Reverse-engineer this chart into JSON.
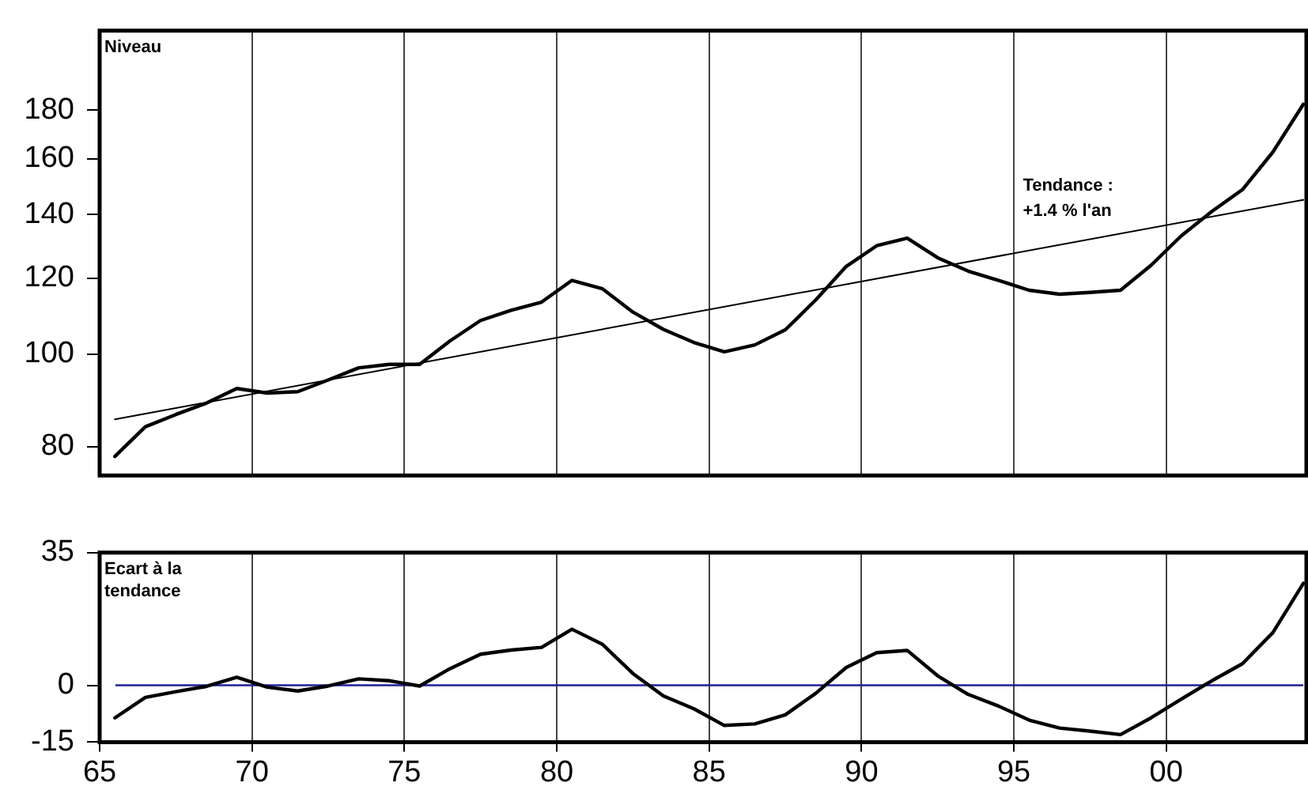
{
  "chart_data": [
    {
      "type": "line",
      "ylabel": "Niveau",
      "log": true,
      "grid": "x",
      "legend": false,
      "tick_labels": "y",
      "marker": "none",
      "x": [
        1965.5,
        1966.5,
        1967.5,
        1968.5,
        1969.5,
        1970.5,
        1971.5,
        1972.5,
        1973.5,
        1974.5,
        1975.5,
        1976.5,
        1977.5,
        1978.5,
        1979.5,
        1980.5,
        1981.5,
        1982.5,
        1983.5,
        1984.5,
        1985.5,
        1986.5,
        1987.5,
        1988.5,
        1989.5,
        1990.5,
        1991.5,
        1992.5,
        1993.5,
        1994.5,
        1995.5,
        1996.5,
        1997.5,
        1998.5,
        1999.5,
        2000.5,
        2001.5,
        2002.5,
        2003.5,
        2004.5
      ],
      "series": [
        {
          "color": "#000000",
          "values": [
            78.1,
            83.9,
            86.4,
            88.8,
            92.0,
            91.0,
            91.3,
            93.9,
            96.7,
            97.5,
            97.5,
            103.2,
            108.4,
            111.1,
            113.3,
            119.4,
            117.0,
            110.6,
            106.1,
            102.8,
            100.5,
            102.2,
            106.0,
            113.9,
            123.5,
            129.8,
            132.2,
            126.1,
            122.1,
            119.4,
            116.6,
            115.5,
            116.0,
            116.6,
            123.8,
            133.0,
            141.0,
            148.6,
            162.7,
            182.6
          ]
        },
        {
          "type": "line",
          "color": "#000000",
          "x": [
            1965.5,
            2004.5
          ],
          "values": [
            85.4,
            145.0
          ]
        }
      ],
      "annotations": [
        "Tendance :\n+1.4 % l'an"
      ],
      "xlim": [
        1965,
        2004.6
      ],
      "xticks": [
        {
          "value": 1965,
          "label": null
        },
        {
          "value": 1970,
          "label": null
        },
        {
          "value": 1975,
          "label": null
        },
        {
          "value": 1980,
          "label": null
        },
        {
          "value": 1985,
          "label": null
        },
        {
          "value": 1990,
          "label": null
        },
        {
          "value": 1995,
          "label": null
        },
        {
          "value": 2000,
          "label": null
        }
      ],
      "ylim": [
        74.6,
        218
      ],
      "yticks": [
        80,
        100,
        120,
        140,
        160,
        180
      ]
    },
    {
      "type": "line",
      "ylabel": "Ecart à la tendance",
      "grid": "x",
      "legend": false,
      "marker": "none",
      "x": [
        1965.5,
        1966.5,
        1967.5,
        1968.5,
        1969.5,
        1970.5,
        1971.5,
        1972.5,
        1973.5,
        1974.5,
        1975.5,
        1976.5,
        1977.5,
        1978.5,
        1979.5,
        1980.5,
        1981.5,
        1982.5,
        1983.5,
        1984.5,
        1985.5,
        1986.5,
        1987.5,
        1988.5,
        1989.5,
        1990.5,
        1991.5,
        1992.5,
        1993.5,
        1994.5,
        1995.5,
        1996.5,
        1997.5,
        1998.5,
        1999.5,
        2000.5,
        2001.5,
        2002.5,
        2003.5,
        2004.5
      ],
      "series": [
        {
          "color": "#000000",
          "values": [
            -8.6,
            -3.2,
            -1.7,
            -0.3,
            2.1,
            -0.5,
            -1.5,
            -0.2,
            1.7,
            1.2,
            -0.2,
            4.4,
            8.2,
            9.3,
            10.0,
            14.8,
            10.8,
            3.1,
            -2.8,
            -6.2,
            -10.6,
            -10.2,
            -7.8,
            -2.1,
            4.7,
            8.6,
            9.2,
            2.5,
            -2.4,
            -5.5,
            -9.2,
            -11.3,
            -12.1,
            -13.0,
            -8.6,
            -3.6,
            1.2,
            5.7,
            13.9,
            26.9
          ]
        }
      ],
      "ref_lines": [
        {
          "axis": "y",
          "value": 0,
          "color": "#1f1f9a"
        }
      ],
      "xlim": [
        1965,
        2004.6
      ],
      "xticks": [
        {
          "value": 1965,
          "label": "65"
        },
        {
          "value": 1970,
          "label": "70"
        },
        {
          "value": 1975,
          "label": "75"
        },
        {
          "value": 1980,
          "label": "80"
        },
        {
          "value": 1985,
          "label": "85"
        },
        {
          "value": 1990,
          "label": "90"
        },
        {
          "value": 1995,
          "label": "95"
        },
        {
          "value": 2000,
          "label": "00"
        }
      ],
      "ylim": [
        -15,
        35
      ],
      "yticks": [
        -15,
        0,
        35
      ]
    }
  ]
}
